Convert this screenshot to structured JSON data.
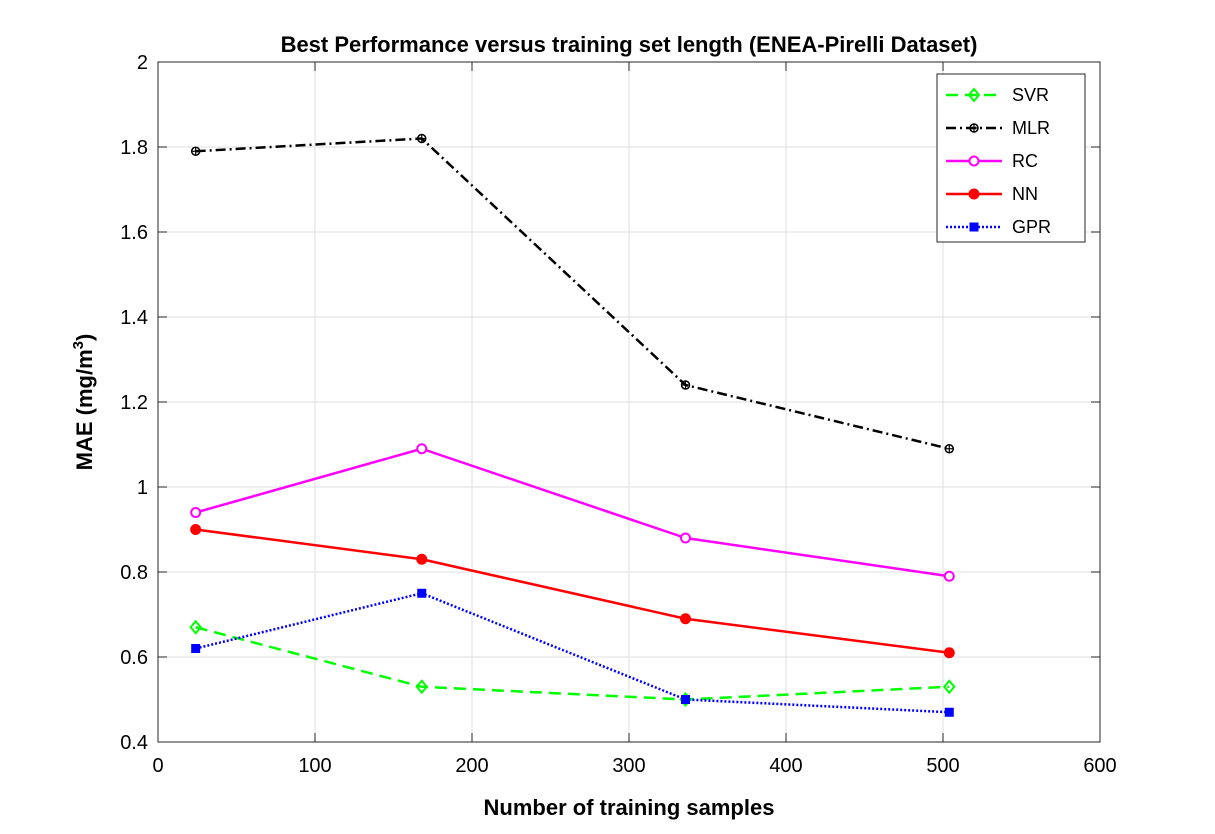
{
  "chart_data": {
    "type": "line",
    "title": "Best Performance versus training set length (ENEA-Pirelli Dataset)",
    "xlabel": "Number of training samples",
    "ylabel_main": "MAE (mg/m",
    "ylabel_sup": "3",
    "ylabel_end": ")",
    "xlim": [
      0,
      600
    ],
    "ylim": [
      0.4,
      2
    ],
    "xticks": [
      0,
      100,
      200,
      300,
      400,
      500,
      600
    ],
    "xtick_labels": [
      "0",
      "100",
      "200",
      "300",
      "400",
      "500",
      "600"
    ],
    "yticks": [
      0.4,
      0.6,
      0.8,
      1.0,
      1.2,
      1.4,
      1.6,
      1.8,
      2.0
    ],
    "ytick_labels": [
      "0.4",
      "0.6",
      "0.8",
      "1",
      "1.2",
      "1.4",
      "1.6",
      "1.8",
      "2"
    ],
    "grid": true,
    "legend_position": "top-right",
    "x": [
      24,
      168,
      336,
      504
    ],
    "series": [
      {
        "name": "SVR",
        "values": [
          0.67,
          0.53,
          0.5,
          0.53
        ],
        "color": "#00ff00",
        "dash": "dashed",
        "marker": "diamond"
      },
      {
        "name": "MLR",
        "values": [
          1.79,
          1.82,
          1.24,
          1.09
        ],
        "color": "#000000",
        "dash": "dashdot",
        "marker": "asterisk"
      },
      {
        "name": "RC",
        "values": [
          0.94,
          1.09,
          0.88,
          0.79
        ],
        "color": "#ff00ff",
        "dash": "solid",
        "marker": "circle-open"
      },
      {
        "name": "NN",
        "values": [
          0.9,
          0.83,
          0.69,
          0.61
        ],
        "color": "#ff0000",
        "dash": "solid",
        "marker": "circle-filled"
      },
      {
        "name": "GPR",
        "values": [
          0.62,
          0.75,
          0.5,
          0.47
        ],
        "color": "#0000ff",
        "dash": "dotted",
        "marker": "square"
      }
    ]
  }
}
